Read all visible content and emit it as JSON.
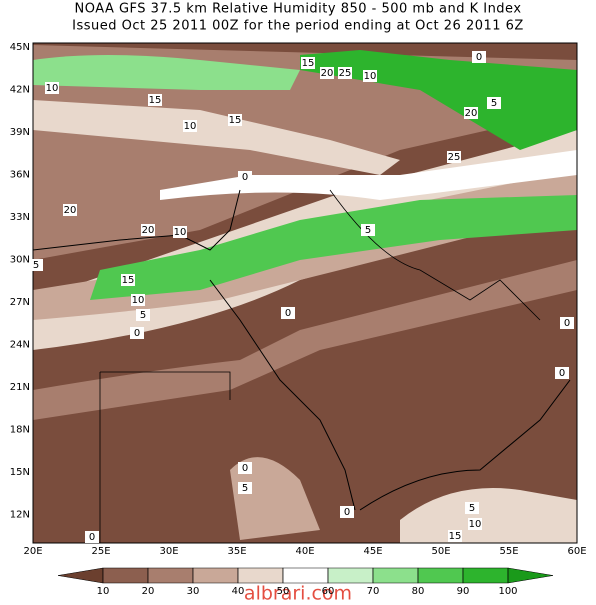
{
  "header": {
    "line1": "NOAA GFS 37.5 km Relative Humidity 850 - 500 mb and K Index",
    "line2": "Issued Oct 25 2011 00Z for the period ending at Oct 26 2011 6Z"
  },
  "lat_labels": [
    "45N",
    "42N",
    "39N",
    "36N",
    "33N",
    "30N",
    "27N",
    "24N",
    "21N",
    "18N",
    "15N",
    "12N"
  ],
  "lon_labels": [
    "20E",
    "25E",
    "30E",
    "35E",
    "40E",
    "45E",
    "50E",
    "55E",
    "60E"
  ],
  "contour_labels": [
    "10",
    "15",
    "20",
    "20",
    "10",
    "15",
    "10",
    "5",
    "0",
    "5",
    "0",
    "5",
    "0",
    "10",
    "15",
    "25",
    "20",
    "15",
    "10",
    "20",
    "25",
    "5",
    "0",
    "0",
    "0",
    "5",
    "0",
    "5",
    "10",
    "15",
    "0",
    "0"
  ],
  "colorbar": {
    "levels": [
      10,
      20,
      30,
      40,
      50,
      60,
      70,
      80,
      90,
      100
    ],
    "colors": [
      "#6b3f2e",
      "#8c5f4f",
      "#a87e6e",
      "#c9a898",
      "#e8d8cc",
      "#ffffff",
      "#c8f0c8",
      "#8ce08c",
      "#50c850",
      "#2db42d",
      "#1a9a1a"
    ]
  },
  "watermark": "albrari.com"
}
